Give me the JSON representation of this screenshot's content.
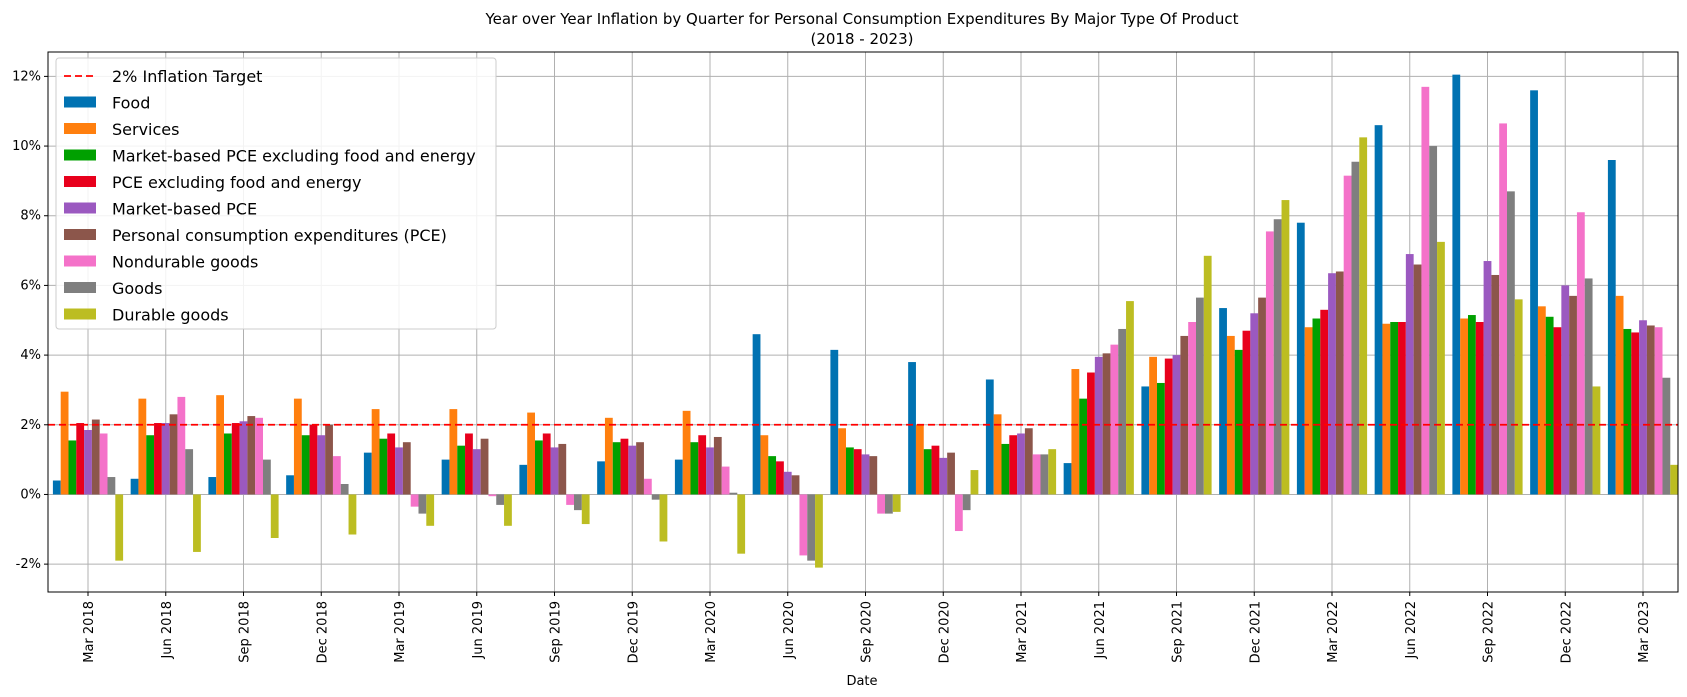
{
  "chart_data": {
    "type": "bar",
    "title": "Year over Year Inflation by Quarter for Personal Consumption Expenditures By Major Type Of Product",
    "subtitle": "(2018 - 2023)",
    "xlabel": "Date",
    "ylabel": "",
    "ylim": [
      -2.8,
      12.7
    ],
    "yticks": [
      -2,
      0,
      2,
      4,
      6,
      8,
      10,
      12
    ],
    "ytick_labels": [
      "-2%",
      "0%",
      "2%",
      "4%",
      "6%",
      "8%",
      "10%",
      "12%"
    ],
    "grid": true,
    "legend_position": "top-left",
    "reference_line": {
      "name": "2% Inflation Target",
      "value": 2,
      "color": "#ff0000",
      "style": "dashed"
    },
    "categories": [
      "Mar 2018",
      "Jun 2018",
      "Sep 2018",
      "Dec 2018",
      "Mar 2019",
      "Jun 2019",
      "Sep 2019",
      "Dec 2019",
      "Mar 2020",
      "Jun 2020",
      "Sep 2020",
      "Dec 2020",
      "Mar 2021",
      "Jun 2021",
      "Sep 2021",
      "Dec 2021",
      "Mar 2022",
      "Jun 2022",
      "Sep 2022",
      "Dec 2022",
      "Mar 2023"
    ],
    "series": [
      {
        "name": "Food",
        "color": "#0072b2",
        "values": [
          0.4,
          0.45,
          0.5,
          0.55,
          1.2,
          1.0,
          0.85,
          0.95,
          1.0,
          4.6,
          4.15,
          3.8,
          3.3,
          0.9,
          3.1,
          5.35,
          7.8,
          10.6,
          12.05,
          11.6,
          9.6
        ]
      },
      {
        "name": "Services",
        "color": "#ff7f0e",
        "values": [
          2.95,
          2.75,
          2.85,
          2.75,
          2.45,
          2.45,
          2.35,
          2.2,
          2.4,
          1.7,
          1.9,
          2.0,
          2.3,
          3.6,
          3.95,
          4.55,
          4.8,
          4.9,
          5.05,
          5.4,
          5.7
        ]
      },
      {
        "name": "Market-based PCE excluding food and energy",
        "color": "#00a000",
        "values": [
          1.55,
          1.7,
          1.75,
          1.7,
          1.6,
          1.4,
          1.55,
          1.5,
          1.5,
          1.1,
          1.35,
          1.3,
          1.45,
          2.75,
          3.2,
          4.15,
          5.05,
          4.95,
          5.15,
          5.1,
          4.75
        ]
      },
      {
        "name": "PCE excluding food and energy",
        "color": "#e8001c",
        "values": [
          2.05,
          2.05,
          2.05,
          2.0,
          1.75,
          1.75,
          1.75,
          1.6,
          1.7,
          0.95,
          1.3,
          1.4,
          1.7,
          3.5,
          3.9,
          4.7,
          5.3,
          4.95,
          4.95,
          4.8,
          4.65
        ]
      },
      {
        "name": "Market-based PCE",
        "color": "#9b59c0",
        "values": [
          1.85,
          2.05,
          2.1,
          1.7,
          1.35,
          1.3,
          1.35,
          1.4,
          1.35,
          0.65,
          1.15,
          1.05,
          1.75,
          3.95,
          4.0,
          5.2,
          6.35,
          6.9,
          6.7,
          6.0,
          5.0
        ]
      },
      {
        "name": "Personal consumption expenditures (PCE)",
        "color": "#8c564b",
        "values": [
          2.15,
          2.3,
          2.25,
          2.0,
          1.5,
          1.6,
          1.45,
          1.5,
          1.65,
          0.55,
          1.1,
          1.2,
          1.9,
          4.05,
          4.55,
          5.65,
          6.4,
          6.6,
          6.3,
          5.7,
          4.85
        ]
      },
      {
        "name": "Nondurable goods",
        "color": "#f472c9",
        "values": [
          1.75,
          2.8,
          2.2,
          1.1,
          -0.35,
          -0.05,
          -0.3,
          0.45,
          0.8,
          -1.75,
          -0.55,
          -1.05,
          1.15,
          4.3,
          4.95,
          7.55,
          9.15,
          11.7,
          10.65,
          8.1,
          4.8
        ]
      },
      {
        "name": "Goods",
        "color": "#7f7f7f",
        "values": [
          0.5,
          1.3,
          1.0,
          0.3,
          -0.55,
          -0.3,
          -0.45,
          -0.15,
          0.05,
          -1.9,
          -0.55,
          -0.45,
          1.15,
          4.75,
          5.65,
          7.9,
          9.55,
          10.0,
          8.7,
          6.2,
          3.35
        ]
      },
      {
        "name": "Durable goods",
        "color": "#bcbd22",
        "values": [
          -1.9,
          -1.65,
          -1.25,
          -1.15,
          -0.9,
          -0.9,
          -0.85,
          -1.35,
          -1.7,
          -2.1,
          -0.5,
          0.7,
          1.3,
          5.55,
          6.85,
          8.45,
          10.25,
          7.25,
          5.6,
          3.1,
          0.85
        ]
      }
    ]
  }
}
